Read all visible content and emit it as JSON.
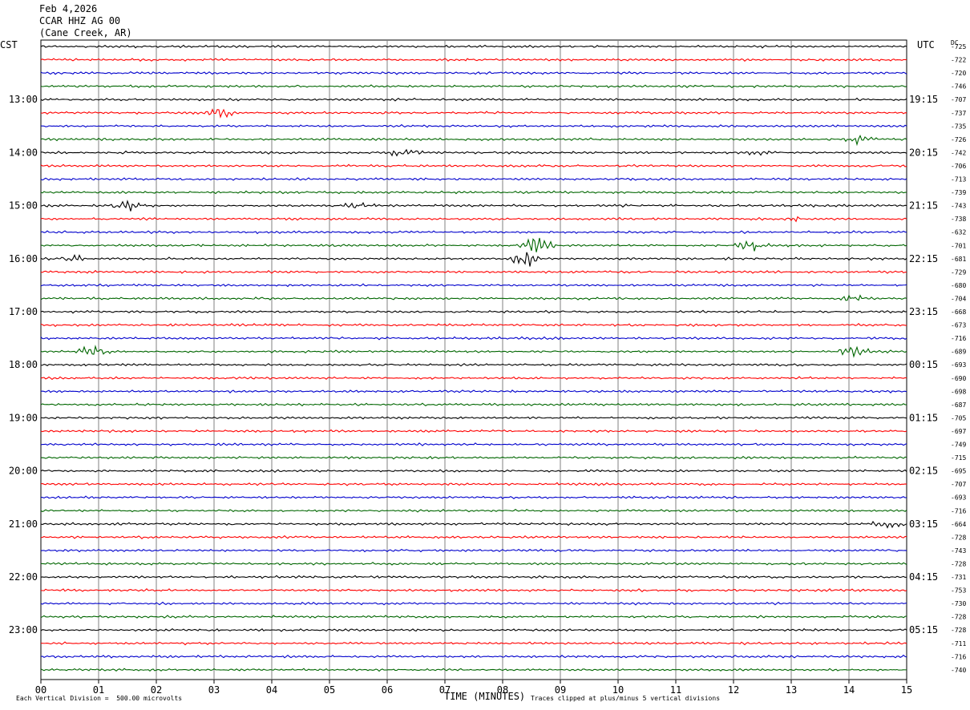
{
  "header": {
    "date": "Feb 4,2026",
    "station": "CCAR HHZ AG 00",
    "location": "(Cane Creek, AR)"
  },
  "left_zone": "CST",
  "right_zone": "UTC",
  "dc_label": "DC",
  "footer": {
    "scale_note": "Each Vertical Division =  500.00 microvolts",
    "clip_note": "Traces clipped at plus/minus 5 vertical divisions"
  },
  "colors": {
    "trace_cycle": [
      "#000000",
      "#ff0000",
      "#0000cc",
      "#006600"
    ],
    "grid": "#808080"
  },
  "chart_data": {
    "type": "line",
    "title": "",
    "xlabel": "TIME (MINUTES)",
    "ylabel": "",
    "xlim": [
      0,
      15
    ],
    "x_ticks": [
      "00",
      "01",
      "02",
      "03",
      "04",
      "05",
      "06",
      "07",
      "08",
      "09",
      "10",
      "11",
      "12",
      "13",
      "14",
      "15"
    ],
    "rows_count": 48,
    "left_hour_labels": [
      {
        "row": 4,
        "label": "13:00"
      },
      {
        "row": 8,
        "label": "14:00"
      },
      {
        "row": 12,
        "label": "15:00"
      },
      {
        "row": 16,
        "label": "16:00"
      },
      {
        "row": 20,
        "label": "17:00"
      },
      {
        "row": 24,
        "label": "18:00"
      },
      {
        "row": 28,
        "label": "19:00"
      },
      {
        "row": 32,
        "label": "20:00"
      },
      {
        "row": 36,
        "label": "21:00"
      },
      {
        "row": 40,
        "label": "22:00"
      },
      {
        "row": 44,
        "label": "23:00"
      }
    ],
    "right_hour_labels": [
      {
        "row": 4,
        "label": "19:15"
      },
      {
        "row": 8,
        "label": "20:15"
      },
      {
        "row": 12,
        "label": "21:15"
      },
      {
        "row": 16,
        "label": "22:15"
      },
      {
        "row": 20,
        "label": "23:15"
      },
      {
        "row": 24,
        "label": "00:15"
      },
      {
        "row": 28,
        "label": "01:15"
      },
      {
        "row": 32,
        "label": "02:15"
      },
      {
        "row": 36,
        "label": "03:15"
      },
      {
        "row": 40,
        "label": "04:15"
      },
      {
        "row": 44,
        "label": "05:15"
      }
    ],
    "dc_offsets": [
      "-725",
      "-722",
      "-720",
      "-746",
      "-707",
      "-737",
      "-735",
      "-726",
      "-742",
      "-706",
      "-713",
      "-739",
      "-743",
      "-738",
      "-632",
      "-701",
      "-681",
      "-729",
      "-680",
      "-704",
      "-668",
      "-673",
      "-716",
      "-689",
      "-693",
      "-690",
      "-698",
      "-687",
      "-705",
      "-697",
      "-749",
      "-715",
      "-695",
      "-707",
      "-693",
      "-716",
      "-664",
      "-728",
      "-743",
      "-728",
      "-731",
      "-753",
      "-730",
      "-728",
      "-728",
      "-711",
      "-716",
      "-740"
    ],
    "events": [
      {
        "row": 5,
        "minute": 3.05,
        "amplitude": 1.8
      },
      {
        "row": 16,
        "minute": 0.5,
        "amplitude": 1.6
      },
      {
        "row": 16,
        "minute": 8.4,
        "amplitude": 2.4
      },
      {
        "row": 15,
        "minute": 8.6,
        "amplitude": 2.8
      },
      {
        "row": 15,
        "minute": 12.3,
        "amplitude": 2.2
      },
      {
        "row": 23,
        "minute": 0.9,
        "amplitude": 1.6
      },
      {
        "row": 23,
        "minute": 14.1,
        "amplitude": 1.5
      },
      {
        "row": 12,
        "minute": 1.5,
        "amplitude": 1.3
      },
      {
        "row": 12,
        "minute": 5.5,
        "amplitude": 1.2
      },
      {
        "row": 8,
        "minute": 6.3,
        "amplitude": 1.3
      },
      {
        "row": 7,
        "minute": 14.2,
        "amplitude": 1.2
      },
      {
        "row": 19,
        "minute": 14.1,
        "amplitude": 1.3
      },
      {
        "row": 36,
        "minute": 14.7,
        "amplitude": 1.3
      },
      {
        "row": 13,
        "minute": 13.0,
        "amplitude": 1.0
      },
      {
        "row": 8,
        "minute": 12.4,
        "amplitude": 1.0
      }
    ]
  }
}
